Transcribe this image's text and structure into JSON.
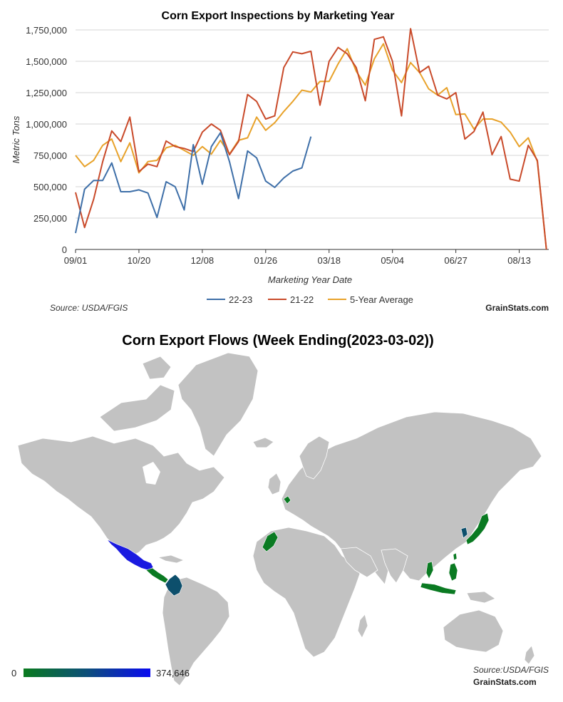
{
  "chart_data": [
    {
      "type": "line",
      "title": "Corn Export Inspections by Marketing Year",
      "xlabel": "Marketing Year Date",
      "ylabel": "Metric Tons",
      "ylim": [
        0,
        1750000
      ],
      "yticks": [
        0,
        250000,
        500000,
        750000,
        1000000,
        1250000,
        1500000,
        1750000
      ],
      "ytick_labels": [
        "0",
        "250,000",
        "500,000",
        "750,000",
        "1,000,000",
        "1,250,000",
        "1,500,000",
        "1,750,000"
      ],
      "x_tick_labels": [
        "09/01",
        "10/20",
        "12/08",
        "01/26",
        "03/18",
        "05/04",
        "06/27",
        "08/13"
      ],
      "x_tick_weeks": [
        0,
        7,
        14,
        21,
        28,
        35,
        42,
        49
      ],
      "grid": true,
      "legend_position": "bottom-center",
      "series": [
        {
          "name": "22-23",
          "color": "#3e6fa8",
          "values": [
            130000,
            480000,
            550000,
            550000,
            690000,
            460000,
            460000,
            475000,
            450000,
            255000,
            540000,
            500000,
            315000,
            835000,
            520000,
            820000,
            930000,
            700000,
            405000,
            785000,
            730000,
            545000,
            495000,
            570000,
            625000,
            650000,
            900000
          ]
        },
        {
          "name": "21-22",
          "color": "#c94a2a",
          "values": [
            455000,
            175000,
            400000,
            700000,
            945000,
            860000,
            1055000,
            620000,
            680000,
            660000,
            865000,
            820000,
            805000,
            780000,
            935000,
            1000000,
            950000,
            755000,
            860000,
            1235000,
            1180000,
            1040000,
            1065000,
            1450000,
            1575000,
            1560000,
            1580000,
            1150000,
            1500000,
            1610000,
            1560000,
            1450000,
            1185000,
            1675000,
            1695000,
            1500000,
            1065000,
            1760000,
            1410000,
            1460000,
            1230000,
            1200000,
            1250000,
            880000,
            940000,
            1095000,
            755000,
            900000,
            560000,
            545000,
            830000,
            710000,
            0
          ]
        },
        {
          "name": "5-Year Average",
          "color": "#e8a22a",
          "values": [
            750000,
            660000,
            710000,
            830000,
            880000,
            700000,
            850000,
            610000,
            700000,
            710000,
            810000,
            830000,
            790000,
            750000,
            820000,
            760000,
            870000,
            760000,
            870000,
            890000,
            1055000,
            950000,
            1010000,
            1100000,
            1180000,
            1270000,
            1255000,
            1340000,
            1340000,
            1480000,
            1600000,
            1420000,
            1310000,
            1520000,
            1640000,
            1430000,
            1330000,
            1490000,
            1410000,
            1280000,
            1230000,
            1290000,
            1075000,
            1080000,
            960000,
            1040000,
            1040000,
            1015000,
            935000,
            820000,
            890000,
            700000,
            0
          ]
        }
      ],
      "source": "Source: USDA/FGIS",
      "brand": "GrainStats.com"
    },
    {
      "type": "map",
      "title": "Corn Export Flows (Week Ending(2023-03-02))",
      "scale_min": "0",
      "scale_max": "374,646",
      "scale_colors": [
        "#0a7a1e",
        "#0c4f7a",
        "#0a0af0"
      ],
      "land_color": "#c2c2c2",
      "highlighted_colors": {
        "mexico": "#1a1ae0",
        "colombia": "#0d4f6c",
        "central_america": "#0a7a22",
        "morocco": "#0a7a22",
        "netherlands": "#0a7a22",
        "japan": "#0a7a22",
        "south_korea": "#0d4f6c",
        "taiwan": "#0a7a22",
        "philippines": "#0a7a22",
        "vietnam": "#0a7a22",
        "indonesia": "#0a7a22"
      },
      "source": "Source:USDA/FGIS",
      "brand": "GrainStats.com"
    }
  ]
}
